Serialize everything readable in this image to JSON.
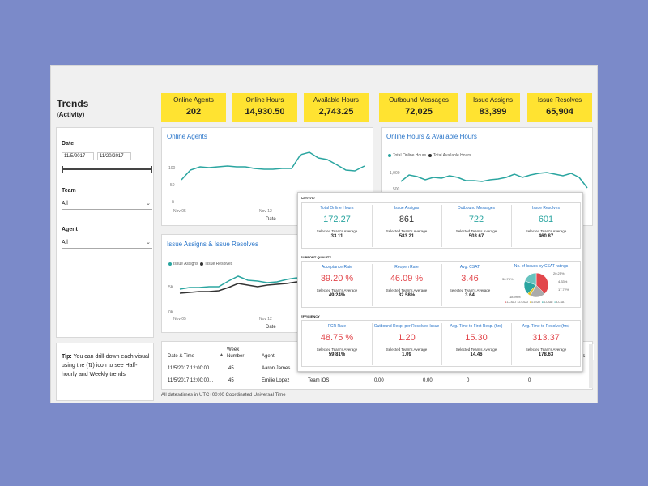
{
  "title": "Trends",
  "subtitle": "(Activity)",
  "kpis": [
    {
      "label": "Online Agents",
      "value": "202"
    },
    {
      "label": "Online Hours",
      "value": "14,930.50"
    },
    {
      "label": "Available Hours",
      "value": "2,743.25"
    },
    {
      "label": "Outbound Messages",
      "value": "72,025"
    },
    {
      "label": "Issue Assigns",
      "value": "83,399"
    },
    {
      "label": "Issue Resolves",
      "value": "65,904"
    }
  ],
  "filters": {
    "date_label": "Date",
    "date_start": "11/5/2017",
    "date_end": "11/20/2017",
    "team_label": "Team",
    "team_value": "All",
    "agent_label": "Agent",
    "agent_value": "All"
  },
  "tip": {
    "prefix": "Tip:",
    "text": "You can drill-down each visual using the (⇅) icon to see Half-hourly and Weekly trends"
  },
  "chart_online_agents": {
    "title": "Online Agents",
    "y_ticks": [
      "100",
      "50",
      "0"
    ],
    "x_ticks": [
      "Nov 05",
      "Nov 12"
    ],
    "x_label": "Date"
  },
  "chart_hours": {
    "title": "Online Hours & Available Hours",
    "legend": [
      "Total Online Hours",
      "Total Available Hours"
    ],
    "y_ticks": [
      "1,000",
      "500"
    ]
  },
  "chart_issues": {
    "title": "Issue Assigns & Issue Resolves",
    "legend": [
      "Issue Assigns",
      "Issue Resolves"
    ],
    "y_ticks": [
      "5K",
      "0K"
    ],
    "x_ticks": [
      "Nov 05",
      "Nov 12"
    ],
    "x_label": "Date"
  },
  "table": {
    "headers": [
      "Date & Time",
      "Week Number",
      "Agent"
    ],
    "rows": [
      {
        "datetime": "11/5/2017 12:00:00...",
        "week": "45",
        "agent": "Aaron James",
        "team": "",
        "v1": "",
        "v2": "",
        "v3": "",
        "v4": ""
      },
      {
        "datetime": "11/5/2017 12:00:00...",
        "week": "45",
        "agent": "Emilie Lopez",
        "team": "Team iOS",
        "v1": "0.00",
        "v2": "0.00",
        "v3": "0",
        "v4": "0"
      }
    ],
    "extra_header": "es"
  },
  "footer_note": "All dates/times in UTC+00:00 Coordinated Universal Time",
  "tooltip": {
    "activity": {
      "title": "ACTIVITY",
      "metrics": [
        {
          "label": "Total Online Hours",
          "value": "172.27",
          "avg_label": "Selected Team's Average",
          "avg": "33.11"
        },
        {
          "label": "Issue Assigns",
          "value": "861",
          "avg_label": "Selected Team's Average",
          "avg": "583.21"
        },
        {
          "label": "Outbound Messages",
          "value": "722",
          "avg_label": "Selected Team's Average",
          "avg": "503.67"
        },
        {
          "label": "Issue Resolves",
          "value": "601",
          "avg_label": "Selected Team's Average",
          "avg": "460.87"
        }
      ]
    },
    "quality": {
      "title": "SUPPORT QUALITY",
      "metrics": [
        {
          "label": "Acceptance Rate",
          "value": "39.20 %",
          "avg_label": "Selected Team's Average",
          "avg": "49.24%"
        },
        {
          "label": "Reopen Rate",
          "value": "46.09 %",
          "avg_label": "Selected Team's Average",
          "avg": "32.58%"
        },
        {
          "label": "Avg. CSAT",
          "value": "3.46",
          "avg_label": "Selected Team's Average",
          "avg": "3.64"
        }
      ],
      "pie_title": "No. of Issues by CSAT ratings",
      "pie_labels": [
        "20.25%",
        "4.33%",
        "36.75%",
        "17.72%",
        "18.99%"
      ],
      "pie_legend": [
        "1-CSAT",
        "2-CSAT",
        "3-CSAT",
        "4-CSAT",
        "5-CSAT"
      ],
      "pie_values": [
        36.75,
        20.25,
        4.33,
        17.72,
        18.99
      ],
      "pie_colors": [
        "#e2474c",
        "#aaaaaa",
        "#e2c42a",
        "#2aa5a0",
        "#67c3bf"
      ]
    },
    "efficiency": {
      "title": "EFFICIENCY",
      "metrics": [
        {
          "label": "FCR Rate",
          "value": "48.75 %",
          "avg_label": "Selected Team's Average",
          "avg": "59.81%"
        },
        {
          "label": "Outbound Resp. per Resolved Issue",
          "value": "1.20",
          "avg_label": "Selected Team's Average",
          "avg": "1.09"
        },
        {
          "label": "Avg. Time to First Resp. (hrs)",
          "value": "15.30",
          "avg_label": "Selected Team's Average",
          "avg": "14.46"
        },
        {
          "label": "Avg. Time to Resolve (hrs)",
          "value": "313.37",
          "avg_label": "Selected Team's Average",
          "avg": "178.63"
        }
      ]
    }
  },
  "colors": {
    "kpi_bg": "#ffe331",
    "teal": "#2aa5a0",
    "dark_series": "#333333",
    "red": "#e2474c",
    "title_blue": "#2673c8",
    "background": "#7b8ac9"
  }
}
